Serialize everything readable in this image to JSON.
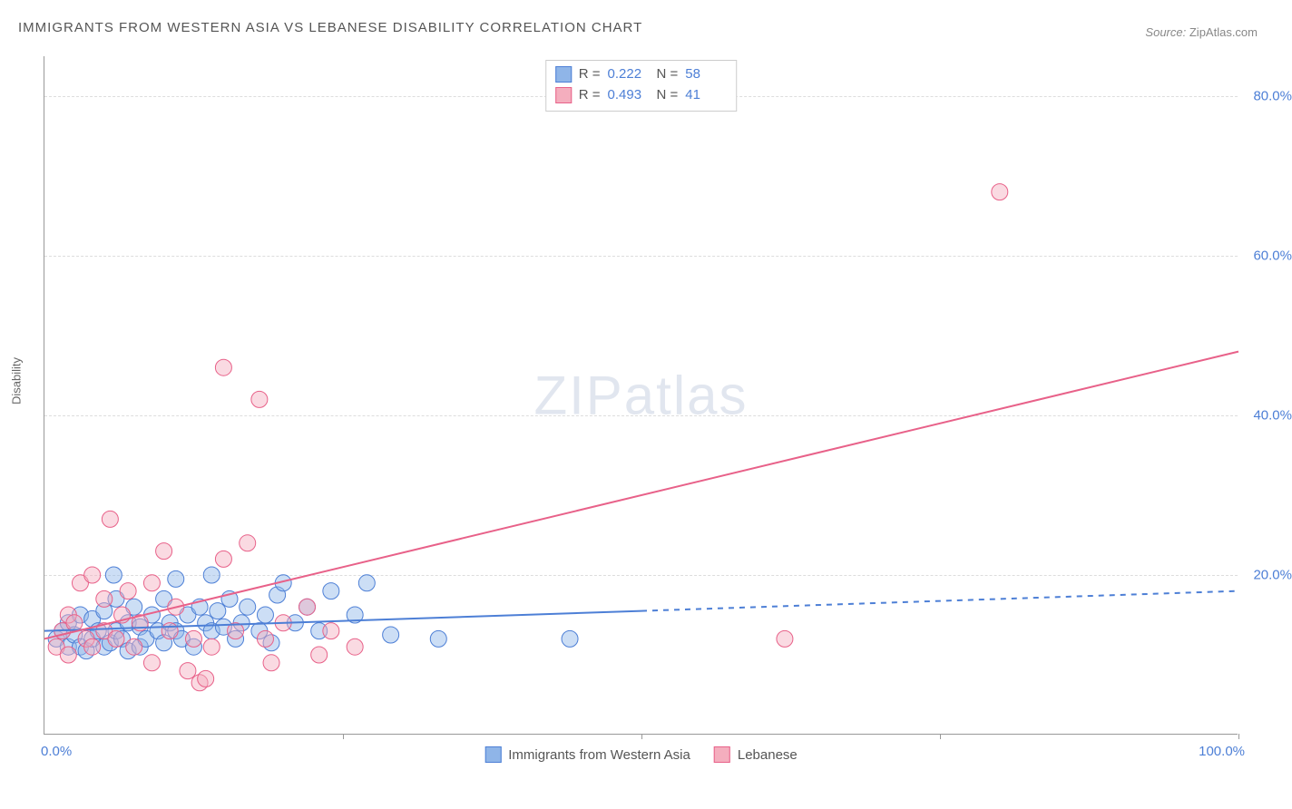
{
  "title": "IMMIGRANTS FROM WESTERN ASIA VS LEBANESE DISABILITY CORRELATION CHART",
  "source_label": "Source:",
  "source_value": "ZipAtlas.com",
  "watermark": "ZIPatlas",
  "y_axis_label": "Disability",
  "chart": {
    "type": "scatter",
    "background_color": "#ffffff",
    "grid_color": "#dddddd",
    "axis_color": "#999999",
    "tick_label_color": "#4d7fd6",
    "xlim": [
      0,
      100
    ],
    "ylim": [
      0,
      85
    ],
    "y_ticks": [
      20,
      40,
      60,
      80
    ],
    "y_tick_labels": [
      "20.0%",
      "40.0%",
      "60.0%",
      "80.0%"
    ],
    "x_tick_labels": {
      "start": "0.0%",
      "end": "100.0%"
    },
    "x_minor_ticks": [
      25,
      50,
      75,
      100
    ],
    "marker_radius": 9,
    "marker_opacity": 0.45,
    "series": [
      {
        "name": "Immigrants from Western Asia",
        "fill_color": "#8fb5e8",
        "stroke_color": "#4d7fd6",
        "r_value": "0.222",
        "n_value": "58",
        "trend": {
          "solid_from": [
            0,
            13
          ],
          "solid_to": [
            50,
            15.5
          ],
          "dashed_to": [
            100,
            18
          ],
          "line_width": 2
        },
        "points": [
          [
            1,
            12
          ],
          [
            1.5,
            13
          ],
          [
            2,
            11
          ],
          [
            2,
            14
          ],
          [
            2.5,
            12.5
          ],
          [
            3,
            11
          ],
          [
            3,
            15
          ],
          [
            3.5,
            10.5
          ],
          [
            4,
            12
          ],
          [
            4,
            14.5
          ],
          [
            4.5,
            13
          ],
          [
            5,
            11
          ],
          [
            5,
            15.5
          ],
          [
            5.5,
            11.5
          ],
          [
            5.8,
            20
          ],
          [
            6,
            13
          ],
          [
            6,
            17
          ],
          [
            6.5,
            12
          ],
          [
            7,
            10.5
          ],
          [
            7,
            14
          ],
          [
            7.5,
            16
          ],
          [
            8,
            11
          ],
          [
            8,
            13.5
          ],
          [
            8.5,
            12
          ],
          [
            9,
            15
          ],
          [
            9.5,
            13
          ],
          [
            10,
            11.5
          ],
          [
            10,
            17
          ],
          [
            10.5,
            14
          ],
          [
            11,
            13
          ],
          [
            11,
            19.5
          ],
          [
            11.5,
            12
          ],
          [
            12,
            15
          ],
          [
            12.5,
            11
          ],
          [
            13,
            16
          ],
          [
            13.5,
            14
          ],
          [
            14,
            13
          ],
          [
            14,
            20
          ],
          [
            14.5,
            15.5
          ],
          [
            15,
            13.5
          ],
          [
            15.5,
            17
          ],
          [
            16,
            12
          ],
          [
            16.5,
            14
          ],
          [
            17,
            16
          ],
          [
            18,
            13
          ],
          [
            18.5,
            15
          ],
          [
            19,
            11.5
          ],
          [
            19.5,
            17.5
          ],
          [
            20,
            19
          ],
          [
            21,
            14
          ],
          [
            22,
            16
          ],
          [
            23,
            13
          ],
          [
            24,
            18
          ],
          [
            26,
            15
          ],
          [
            27,
            19
          ],
          [
            29,
            12.5
          ],
          [
            33,
            12
          ],
          [
            44,
            12
          ]
        ]
      },
      {
        "name": "Lebanese",
        "fill_color": "#f4aebe",
        "stroke_color": "#e86189",
        "r_value": "0.493",
        "n_value": "41",
        "trend": {
          "solid_from": [
            0,
            12
          ],
          "solid_to": [
            100,
            48
          ],
          "dashed_to": null,
          "line_width": 2
        },
        "points": [
          [
            1,
            11
          ],
          [
            1.5,
            13
          ],
          [
            2,
            10
          ],
          [
            2,
            15
          ],
          [
            2.5,
            14
          ],
          [
            3,
            19
          ],
          [
            3.5,
            12
          ],
          [
            4,
            11
          ],
          [
            4,
            20
          ],
          [
            5,
            13
          ],
          [
            5,
            17
          ],
          [
            5.5,
            27
          ],
          [
            6,
            12
          ],
          [
            6.5,
            15
          ],
          [
            7,
            18
          ],
          [
            7.5,
            11
          ],
          [
            8,
            14
          ],
          [
            9,
            9
          ],
          [
            9,
            19
          ],
          [
            10,
            23
          ],
          [
            10.5,
            13
          ],
          [
            11,
            16
          ],
          [
            12,
            8
          ],
          [
            12.5,
            12
          ],
          [
            13,
            6.5
          ],
          [
            13.5,
            7
          ],
          [
            14,
            11
          ],
          [
            15,
            22
          ],
          [
            15,
            46
          ],
          [
            16,
            13
          ],
          [
            17,
            24
          ],
          [
            18,
            42
          ],
          [
            18.5,
            12
          ],
          [
            19,
            9
          ],
          [
            20,
            14
          ],
          [
            22,
            16
          ],
          [
            23,
            10
          ],
          [
            24,
            13
          ],
          [
            26,
            11
          ],
          [
            62,
            12
          ],
          [
            80,
            68
          ]
        ]
      }
    ]
  },
  "bottom_legend": [
    {
      "label": "Immigrants from Western Asia",
      "fill": "#8fb5e8",
      "stroke": "#4d7fd6"
    },
    {
      "label": "Lebanese",
      "fill": "#f4aebe",
      "stroke": "#e86189"
    }
  ]
}
